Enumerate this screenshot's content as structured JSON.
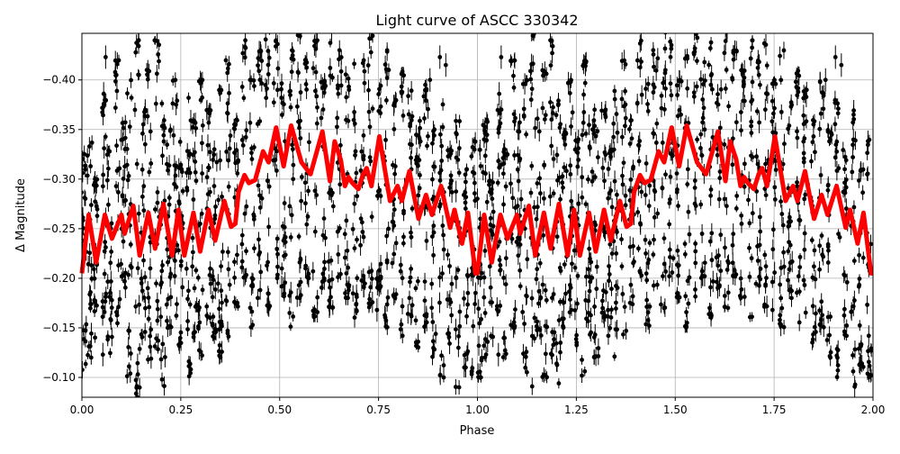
{
  "chart_data": {
    "type": "scatter",
    "title": "Light curve of ASCC 330342",
    "xlabel": "Phase",
    "ylabel": "Δ Magnitude",
    "xlim": [
      0,
      2
    ],
    "ylim": [
      -0.447,
      -0.08
    ],
    "y_inverted": true,
    "grid": true,
    "folded_cycles_shown": 2,
    "xticks": [
      "0.00",
      "0.25",
      "0.50",
      "0.75",
      "1.00",
      "1.25",
      "1.50",
      "1.75",
      "2.00"
    ],
    "xtick_values": [
      0,
      0.25,
      0.5,
      0.75,
      1,
      1.25,
      1.5,
      1.75,
      2
    ],
    "yticks": [
      "−0.40",
      "−0.35",
      "−0.30",
      "−0.25",
      "−0.20",
      "−0.15",
      "−0.10"
    ],
    "ytick_values": [
      -0.4,
      -0.35,
      -0.3,
      -0.25,
      -0.2,
      -0.15,
      -0.1
    ],
    "observations": {
      "color": "#000000",
      "error_bars": true,
      "streaks_phase_min_max": [
        [
          0.005,
          -0.33,
          -0.1
        ],
        [
          0.02,
          -0.36,
          -0.12
        ],
        [
          0.035,
          -0.3,
          -0.14
        ],
        [
          0.055,
          -0.38,
          -0.16
        ],
        [
          0.07,
          -0.33,
          -0.12
        ],
        [
          0.09,
          -0.42,
          -0.15
        ],
        [
          0.105,
          -0.36,
          -0.19
        ],
        [
          0.12,
          -0.4,
          -0.1
        ],
        [
          0.14,
          -0.45,
          -0.08
        ],
        [
          0.155,
          -0.37,
          -0.14
        ],
        [
          0.17,
          -0.41,
          -0.1
        ],
        [
          0.19,
          -0.44,
          -0.12
        ],
        [
          0.205,
          -0.38,
          -0.09
        ],
        [
          0.22,
          -0.35,
          -0.15
        ],
        [
          0.235,
          -0.4,
          -0.16
        ],
        [
          0.25,
          -0.34,
          -0.13
        ],
        [
          0.27,
          -0.42,
          -0.1
        ],
        [
          0.285,
          -0.36,
          -0.14
        ],
        [
          0.3,
          -0.4,
          -0.12
        ],
        [
          0.32,
          -0.37,
          -0.16
        ],
        [
          0.335,
          -0.33,
          -0.14
        ],
        [
          0.35,
          -0.39,
          -0.12
        ],
        [
          0.37,
          -0.42,
          -0.14
        ],
        [
          0.39,
          -0.36,
          -0.17
        ],
        [
          0.41,
          -0.44,
          -0.2
        ],
        [
          0.43,
          -0.4,
          -0.15
        ],
        [
          0.45,
          -0.43,
          -0.18
        ],
        [
          0.47,
          -0.45,
          -0.17
        ],
        [
          0.49,
          -0.44,
          -0.2
        ],
        [
          0.51,
          -0.4,
          -0.18
        ],
        [
          0.53,
          -0.43,
          -0.15
        ],
        [
          0.55,
          -0.45,
          -0.18
        ],
        [
          0.57,
          -0.42,
          -0.2
        ],
        [
          0.59,
          -0.44,
          -0.16
        ],
        [
          0.61,
          -0.4,
          -0.19
        ],
        [
          0.63,
          -0.45,
          -0.17
        ],
        [
          0.65,
          -0.43,
          -0.2
        ],
        [
          0.67,
          -0.41,
          -0.18
        ],
        [
          0.69,
          -0.44,
          -0.16
        ],
        [
          0.71,
          -0.42,
          -0.19
        ],
        [
          0.73,
          -0.45,
          -0.17
        ],
        [
          0.75,
          -0.4,
          -0.19
        ],
        [
          0.77,
          -0.43,
          -0.15
        ],
        [
          0.79,
          -0.38,
          -0.18
        ],
        [
          0.81,
          -0.41,
          -0.14
        ],
        [
          0.83,
          -0.39,
          -0.16
        ],
        [
          0.85,
          -0.36,
          -0.13
        ],
        [
          0.87,
          -0.4,
          -0.15
        ],
        [
          0.89,
          -0.35,
          -0.12
        ],
        [
          0.91,
          -0.38,
          -0.1
        ],
        [
          0.93,
          -0.33,
          -0.13
        ],
        [
          0.95,
          -0.37,
          -0.09
        ],
        [
          0.97,
          -0.31,
          -0.11
        ],
        [
          0.99,
          -0.34,
          -0.1
        ]
      ],
      "isolated_points": [
        [
          0.053,
          -0.123
        ],
        [
          0.06,
          -0.423
        ],
        [
          0.055,
          -0.386
        ],
        [
          0.746,
          -0.168
        ],
        [
          0.88,
          -0.4
        ],
        [
          0.905,
          -0.423
        ],
        [
          0.92,
          -0.415
        ]
      ]
    },
    "model": {
      "color": "#ff0000",
      "x": [
        0.0,
        0.017,
        0.036,
        0.058,
        0.076,
        0.1,
        0.108,
        0.13,
        0.146,
        0.168,
        0.185,
        0.206,
        0.228,
        0.244,
        0.259,
        0.282,
        0.299,
        0.32,
        0.337,
        0.36,
        0.377,
        0.388,
        0.396,
        0.411,
        0.422,
        0.438,
        0.458,
        0.472,
        0.491,
        0.51,
        0.529,
        0.555,
        0.578,
        0.608,
        0.627,
        0.639,
        0.654,
        0.665,
        0.674,
        0.684,
        0.699,
        0.711,
        0.72,
        0.732,
        0.752,
        0.779,
        0.798,
        0.809,
        0.828,
        0.851,
        0.87,
        0.885,
        0.908,
        0.931,
        0.942,
        0.961,
        0.976,
        0.995
      ],
      "y": [
        -0.205,
        -0.264,
        -0.216,
        -0.264,
        -0.24,
        -0.264,
        -0.245,
        -0.273,
        -0.223,
        -0.266,
        -0.23,
        -0.275,
        -0.223,
        -0.269,
        -0.223,
        -0.266,
        -0.227,
        -0.269,
        -0.238,
        -0.278,
        -0.252,
        -0.255,
        -0.287,
        -0.304,
        -0.296,
        -0.299,
        -0.328,
        -0.317,
        -0.352,
        -0.313,
        -0.354,
        -0.317,
        -0.305,
        -0.348,
        -0.298,
        -0.338,
        -0.32,
        -0.293,
        -0.302,
        -0.296,
        -0.29,
        -0.305,
        -0.311,
        -0.293,
        -0.343,
        -0.278,
        -0.293,
        -0.278,
        -0.308,
        -0.26,
        -0.284,
        -0.264,
        -0.293,
        -0.251,
        -0.269,
        -0.235,
        -0.266,
        -0.205
      ]
    }
  }
}
